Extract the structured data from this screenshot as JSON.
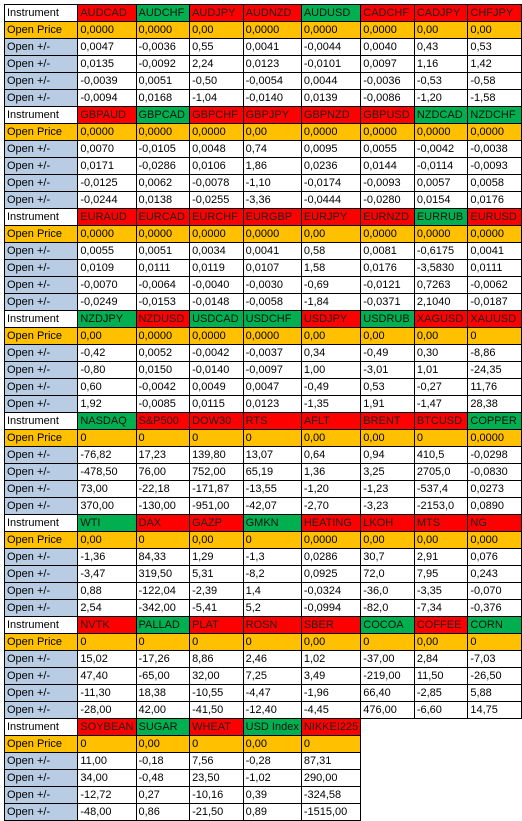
{
  "labels": {
    "instrument": "Instrument",
    "open_price": "Open Price",
    "open_change": "Open +/-"
  },
  "colors": {
    "loss": "#ff0000",
    "gain": "#00b050",
    "open_price": "#ffc000",
    "label": "#b8cce4"
  },
  "blocks": [
    {
      "headers": [
        {
          "name": "AUDCAD",
          "color": "red"
        },
        {
          "name": "AUDCHF",
          "color": "green"
        },
        {
          "name": "AUDJPY",
          "color": "red"
        },
        {
          "name": "AUDNZD",
          "color": "red"
        },
        {
          "name": "AUDUSD",
          "color": "green"
        },
        {
          "name": "CADCHF",
          "color": "red"
        },
        {
          "name": "CADJPY",
          "color": "red"
        },
        {
          "name": "CHFJPY",
          "color": "red"
        }
      ],
      "open": [
        "0,0000",
        "0,0000",
        "0,00",
        "0,0000",
        "0,0000",
        "0,0000",
        "0,00",
        "0,00"
      ],
      "rows": [
        [
          "0,0047",
          "-0,0036",
          "0,55",
          "0,0041",
          "-0,0044",
          "0,0040",
          "0,43",
          "0,53"
        ],
        [
          "0,0135",
          "-0,0092",
          "2,24",
          "0,0123",
          "-0,0101",
          "0,0097",
          "1,16",
          "1,42"
        ],
        [
          "-0,0039",
          "0,0051",
          "-0,50",
          "-0,0054",
          "0,0044",
          "-0,0036",
          "-0,53",
          "-0,58"
        ],
        [
          "-0,0094",
          "0,0168",
          "-1,04",
          "-0,0140",
          "0,0139",
          "-0,0086",
          "-1,20",
          "-1,58"
        ]
      ]
    },
    {
      "headers": [
        {
          "name": "GBPAUD",
          "color": "red"
        },
        {
          "name": "GBPCAD",
          "color": "green"
        },
        {
          "name": "GBPCHF",
          "color": "red"
        },
        {
          "name": "GBPJPY",
          "color": "red"
        },
        {
          "name": "GBPNZD",
          "color": "red"
        },
        {
          "name": "GBPUSD",
          "color": "red"
        },
        {
          "name": "NZDCAD",
          "color": "green"
        },
        {
          "name": "NZDCHF",
          "color": "green"
        }
      ],
      "open": [
        "0,0000",
        "0,0000",
        "0,0000",
        "0,00",
        "0,0000",
        "0,0000",
        "0,0000",
        "0,0000"
      ],
      "rows": [
        [
          "0,0070",
          "-0,0105",
          "0,0048",
          "0,74",
          "0,0095",
          "0,0055",
          "-0,0042",
          "-0,0038"
        ],
        [
          "0,0171",
          "-0,0286",
          "0,0106",
          "1,86",
          "0,0236",
          "0,0144",
          "-0,0114",
          "-0,0093"
        ],
        [
          "-0,0125",
          "0,0062",
          "-0,0078",
          "-1,10",
          "-0,0174",
          "-0,0093",
          "0,0057",
          "0,0058"
        ],
        [
          "-0,0244",
          "0,0138",
          "-0,0255",
          "-3,36",
          "-0,0444",
          "-0,0280",
          "0,0154",
          "0,0176"
        ]
      ]
    },
    {
      "headers": [
        {
          "name": "EURAUD",
          "color": "red"
        },
        {
          "name": "EURCAD",
          "color": "red"
        },
        {
          "name": "EURCHF",
          "color": "red"
        },
        {
          "name": "EURGBP",
          "color": "red"
        },
        {
          "name": "EURJPY",
          "color": "red"
        },
        {
          "name": "EURNZD",
          "color": "red"
        },
        {
          "name": "EURRUB",
          "color": "green"
        },
        {
          "name": "EURUSD",
          "color": "red"
        }
      ],
      "open": [
        "0,0000",
        "0,0000",
        "0,0000",
        "0,0000",
        "0,00",
        "0,0000",
        "0,0000",
        "0,0000"
      ],
      "rows": [
        [
          "0,0055",
          "0,0051",
          "0,0034",
          "0,0041",
          "0,58",
          "0,0081",
          "-0,6175",
          "0,0041"
        ],
        [
          "0,0109",
          "0,0111",
          "0,0119",
          "0,0107",
          "1,58",
          "0,0176",
          "-3,5830",
          "0,0111"
        ],
        [
          "-0,0070",
          "-0,0064",
          "-0,0040",
          "-0,0030",
          "-0,69",
          "-0,0121",
          "0,7263",
          "-0,0062"
        ],
        [
          "-0,0249",
          "-0,0153",
          "-0,0148",
          "-0,0058",
          "-1,84",
          "-0,0371",
          "2,1040",
          "-0,0187"
        ]
      ]
    },
    {
      "headers": [
        {
          "name": "NZDJPY",
          "color": "green"
        },
        {
          "name": "NZDUSD",
          "color": "red"
        },
        {
          "name": "USDCAD",
          "color": "green"
        },
        {
          "name": "USDCHF",
          "color": "green"
        },
        {
          "name": "USDJPY",
          "color": "red"
        },
        {
          "name": "USDRUB",
          "color": "green"
        },
        {
          "name": "XAGUSD",
          "color": "red"
        },
        {
          "name": "XAUUSD",
          "color": "red"
        }
      ],
      "open": [
        "0,00",
        "0,0000",
        "0,0000",
        "0,0000",
        "0,00",
        "0,00",
        "0,00",
        "0"
      ],
      "rows": [
        [
          "-0,42",
          "0,0052",
          "-0,0042",
          "-0,0037",
          "0,34",
          "-0,49",
          "0,30",
          "-8,86"
        ],
        [
          "-0,80",
          "0,0150",
          "-0,0140",
          "-0,0097",
          "1,00",
          "-3,01",
          "1,01",
          "-24,35"
        ],
        [
          "0,60",
          "-0,0042",
          "0,0049",
          "0,0047",
          "-0,49",
          "0,53",
          "-0,27",
          "11,76"
        ],
        [
          "1,92",
          "-0,0085",
          "0,0115",
          "0,0123",
          "-1,35",
          "1,91",
          "-1,47",
          "28,38"
        ]
      ]
    },
    {
      "headers": [
        {
          "name": "NASDAQ",
          "color": "green"
        },
        {
          "name": "S&P500",
          "color": "red"
        },
        {
          "name": "DOW30",
          "color": "red"
        },
        {
          "name": "RTS",
          "color": "red"
        },
        {
          "name": "AFLT",
          "color": "red"
        },
        {
          "name": "BRENT",
          "color": "red"
        },
        {
          "name": "BTCUSD",
          "color": "red"
        },
        {
          "name": "COPPER",
          "color": "green"
        }
      ],
      "open": [
        "0",
        "0",
        "0",
        "0",
        "0,00",
        "0,00",
        "0",
        "0,0000"
      ],
      "rows": [
        [
          "-76,82",
          "17,23",
          "139,80",
          "13,07",
          "0,64",
          "0,94",
          "410,5",
          "-0,0298"
        ],
        [
          "-478,50",
          "76,00",
          "752,00",
          "65,19",
          "1,36",
          "3,25",
          "2705,0",
          "-0,0830"
        ],
        [
          "73,00",
          "-22,18",
          "-171,87",
          "-13,55",
          "-1,20",
          "-1,23",
          "-537,4",
          "0,0273"
        ],
        [
          "370,00",
          "-130,00",
          "-951,00",
          "-42,07",
          "-2,70",
          "-3,23",
          "-2153,0",
          "0,0890"
        ]
      ]
    },
    {
      "headers": [
        {
          "name": "WTI",
          "color": "green"
        },
        {
          "name": "DAX",
          "color": "red"
        },
        {
          "name": "GAZP",
          "color": "red"
        },
        {
          "name": "GMKN",
          "color": "green"
        },
        {
          "name": "HEATING",
          "color": "red"
        },
        {
          "name": "LKOH",
          "color": "red"
        },
        {
          "name": "MTS",
          "color": "red"
        },
        {
          "name": "NG",
          "color": "red"
        }
      ],
      "open": [
        "0,00",
        "0",
        "0,00",
        "0",
        "0,0000",
        "0,00",
        "0,00",
        "0,000"
      ],
      "rows": [
        [
          "-1,36",
          "84,33",
          "1,29",
          "-1,3",
          "0,0286",
          "30,7",
          "2,91",
          "0,076"
        ],
        [
          "-3,47",
          "319,50",
          "5,31",
          "-8,2",
          "0,0925",
          "72,0",
          "7,95",
          "0,243"
        ],
        [
          "0,88",
          "-122,04",
          "-2,39",
          "1,4",
          "-0,0324",
          "-36,0",
          "-3,35",
          "-0,070"
        ],
        [
          "2,54",
          "-342,00",
          "-5,41",
          "5,2",
          "-0,0994",
          "-82,0",
          "-7,34",
          "-0,376"
        ]
      ]
    },
    {
      "headers": [
        {
          "name": "NVTK",
          "color": "red"
        },
        {
          "name": "PALLAD",
          "color": "green"
        },
        {
          "name": "PLAT",
          "color": "red"
        },
        {
          "name": "ROSN",
          "color": "red"
        },
        {
          "name": "SBER",
          "color": "red"
        },
        {
          "name": "COCOA",
          "color": "green"
        },
        {
          "name": "COFFEE",
          "color": "red"
        },
        {
          "name": "CORN",
          "color": "green"
        }
      ],
      "open": [
        "0",
        "0",
        "0",
        "0",
        "0,00",
        "0",
        "0,00",
        "0"
      ],
      "rows": [
        [
          "15,02",
          "-17,26",
          "8,86",
          "2,46",
          "1,02",
          "-37,00",
          "2,84",
          "-7,03"
        ],
        [
          "47,40",
          "-65,00",
          "32,00",
          "7,25",
          "3,49",
          "-219,00",
          "11,50",
          "-26,50"
        ],
        [
          "-11,30",
          "18,38",
          "-10,55",
          "-4,47",
          "-1,96",
          "66,40",
          "-2,85",
          "5,88"
        ],
        [
          "-28,00",
          "42,00",
          "-41,50",
          "-12,40",
          "-4,45",
          "476,00",
          "-6,60",
          "14,75"
        ]
      ]
    },
    {
      "headers": [
        {
          "name": "SOYBEAN",
          "color": "red"
        },
        {
          "name": "SUGAR",
          "color": "green"
        },
        {
          "name": "WHEAT",
          "color": "red"
        },
        {
          "name": "USD Index",
          "color": "green"
        },
        {
          "name": "NIKKEI225",
          "color": "red"
        }
      ],
      "open": [
        "0",
        "0,00",
        "0",
        "0,00",
        "0"
      ],
      "rows": [
        [
          "11,00",
          "-0,18",
          "7,56",
          "-0,28",
          "87,31"
        ],
        [
          "34,00",
          "-0,48",
          "23,50",
          "-1,02",
          "290,00"
        ],
        [
          "-12,72",
          "0,27",
          "-10,16",
          "0,39",
          "-324,58"
        ],
        [
          "-48,00",
          "0,86",
          "-21,50",
          "0,89",
          "-1515,00"
        ]
      ]
    }
  ]
}
